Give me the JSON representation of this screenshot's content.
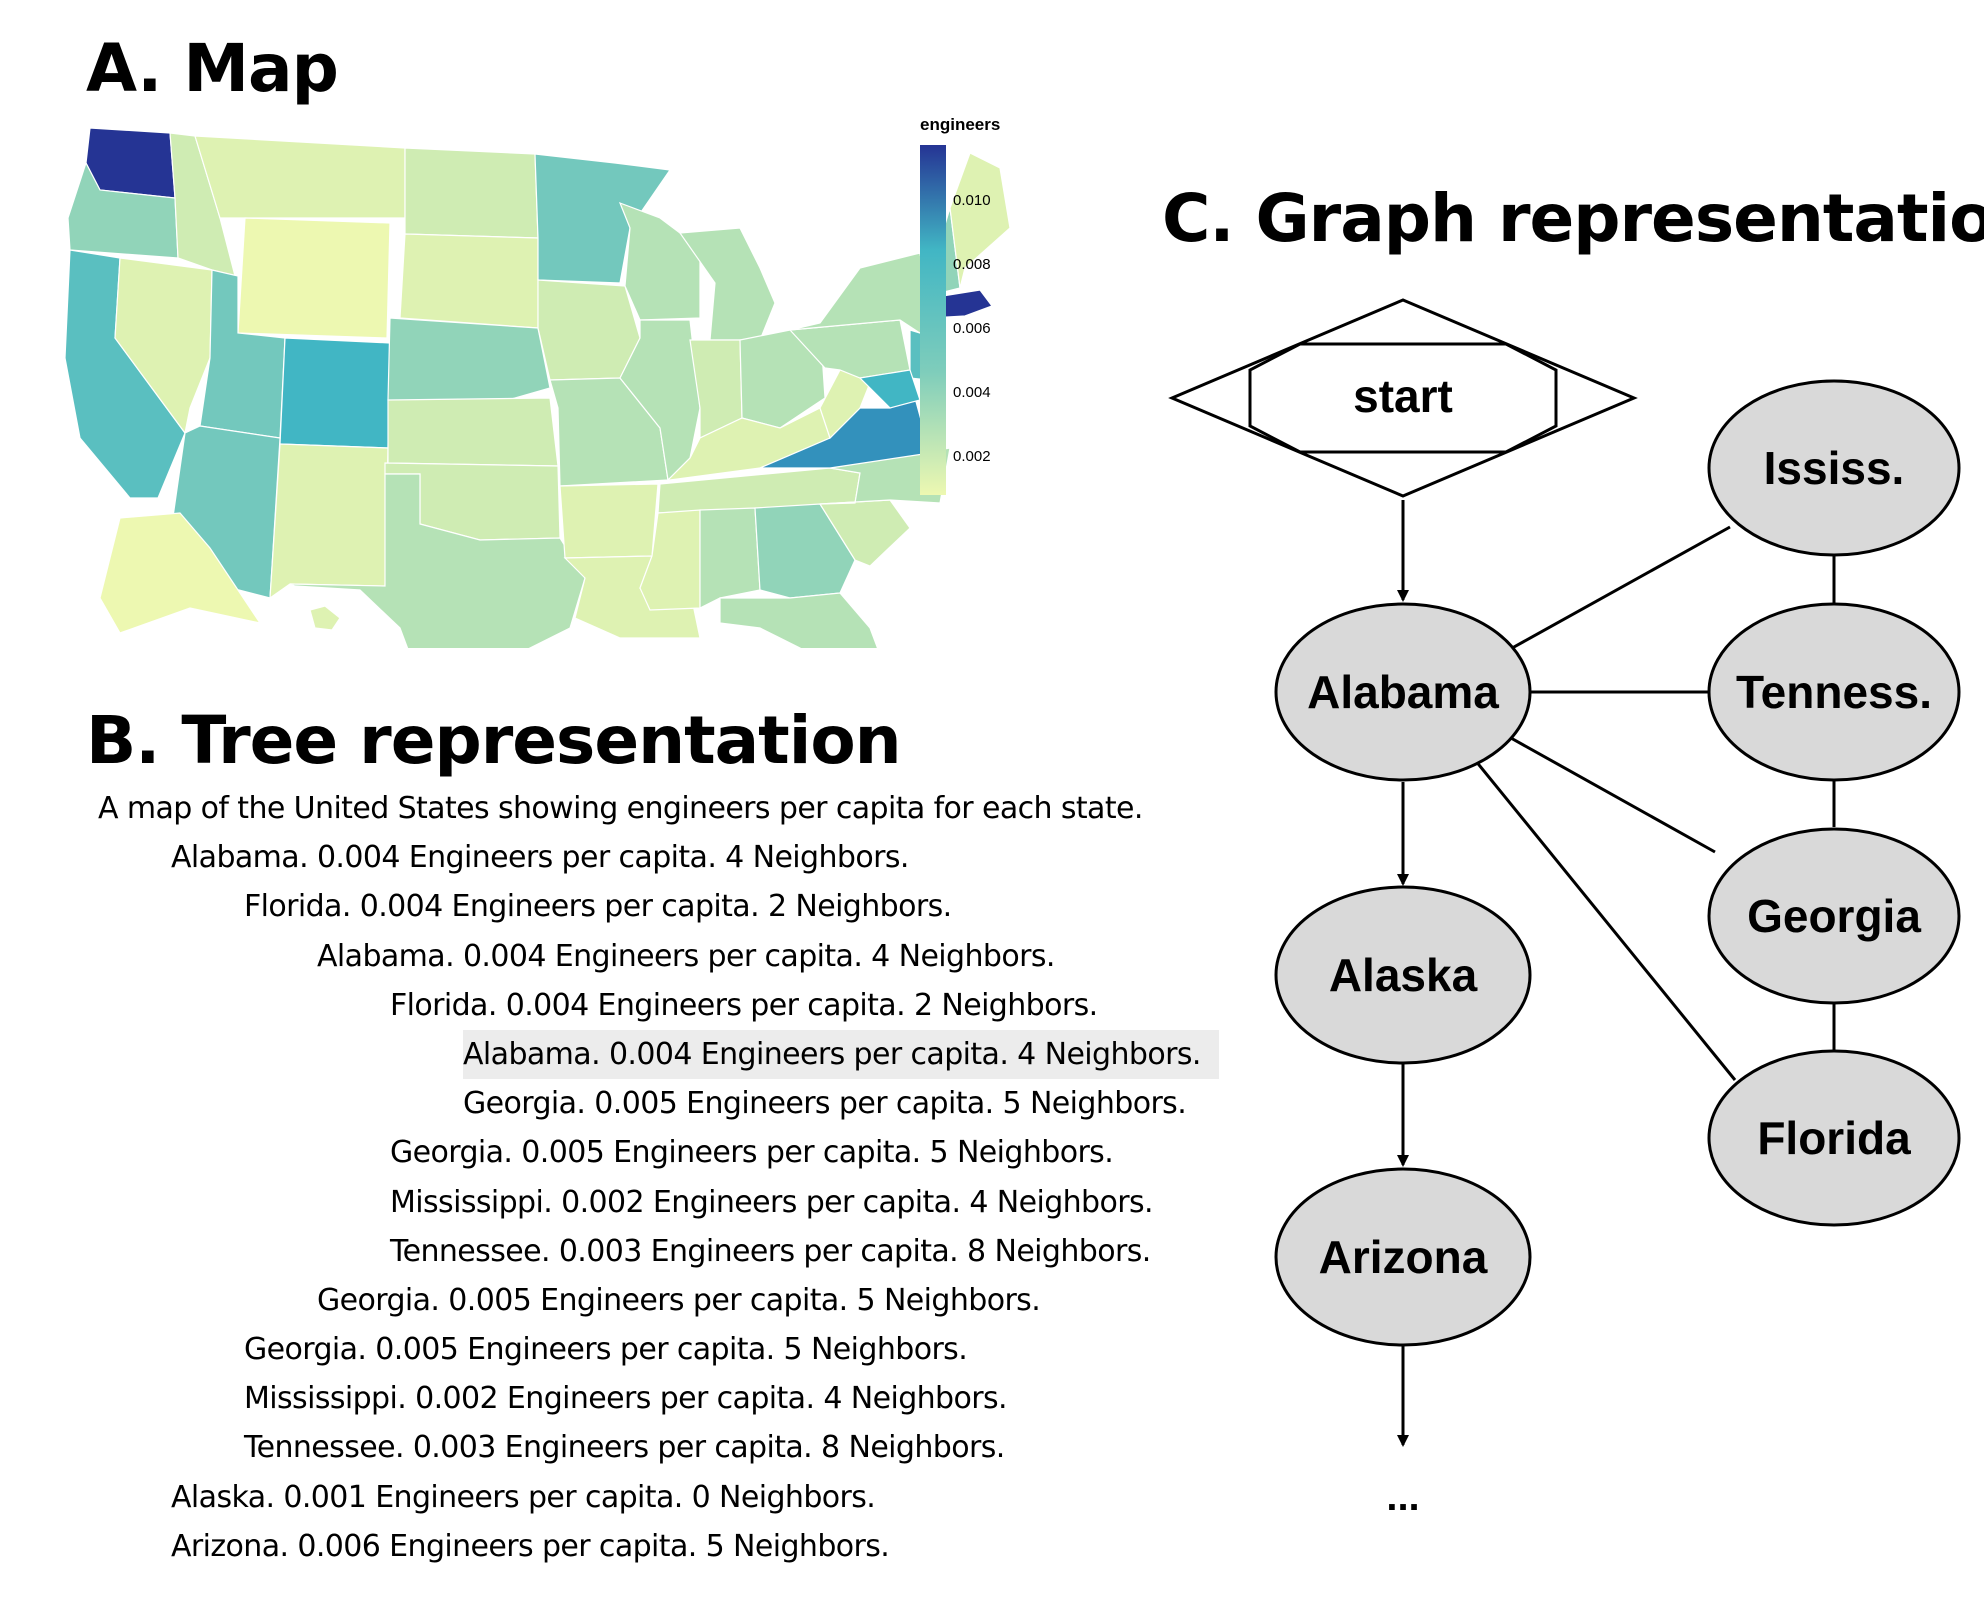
{
  "sections": {
    "map_title": "A. Map",
    "tree_title": "B. Tree representation",
    "graph_title": "C. Graph representation"
  },
  "map": {
    "legend_title": "engineers",
    "legend_ticks": [
      "0.010",
      "0.008",
      "0.006",
      "0.004",
      "0.002"
    ],
    "color_low": "#edf8b1",
    "color_high": "#253494",
    "state_values": {
      "Washington": 0.011,
      "Oregon": 0.005,
      "California": 0.007,
      "Nevada": 0.002,
      "Idaho": 0.003,
      "Montana": 0.002,
      "Wyoming": 0.001,
      "Utah": 0.006,
      "Arizona": 0.006,
      "Colorado": 0.008,
      "New Mexico": 0.002,
      "North Dakota": 0.003,
      "South Dakota": 0.002,
      "Nebraska": 0.005,
      "Kansas": 0.003,
      "Oklahoma": 0.003,
      "Texas": 0.004,
      "Minnesota": 0.006,
      "Iowa": 0.003,
      "Missouri": 0.004,
      "Arkansas": 0.002,
      "Louisiana": 0.002,
      "Wisconsin": 0.004,
      "Illinois": 0.004,
      "Michigan": 0.004,
      "Indiana": 0.003,
      "Ohio": 0.004,
      "Kentucky": 0.002,
      "Tennessee": 0.003,
      "Mississippi": 0.002,
      "Alabama": 0.004,
      "Georgia": 0.005,
      "Florida": 0.004,
      "South Carolina": 0.003,
      "North Carolina": 0.004,
      "Virginia": 0.009,
      "West Virginia": 0.002,
      "Pennsylvania": 0.004,
      "New York": 0.004,
      "Vermont": 0.004,
      "New Hampshire": 0.005,
      "Maine": 0.002,
      "Massachusetts": 0.011,
      "New Jersey": 0.007,
      "Maryland": 0.008,
      "Alaska": 0.001,
      "Hawaii": 0.002
    }
  },
  "tree": {
    "rows": [
      {
        "level": 0,
        "text": "A map of the United States showing engineers per capita for each state."
      },
      {
        "level": 1,
        "text": "Alabama. 0.004 Engineers per capita. 4 Neighbors."
      },
      {
        "level": 2,
        "text": "Florida. 0.004 Engineers per capita. 2 Neighbors."
      },
      {
        "level": 3,
        "text": "Alabama. 0.004 Engineers per capita. 4 Neighbors."
      },
      {
        "level": 4,
        "text": "Florida. 0.004 Engineers per capita. 2 Neighbors."
      },
      {
        "level": 5,
        "text": "Alabama. 0.004 Engineers per capita. 4 Neighbors.",
        "selected": true
      },
      {
        "level": 5,
        "text": "Georgia. 0.005 Engineers per capita. 5 Neighbors."
      },
      {
        "level": 4,
        "text": "Georgia. 0.005 Engineers per capita. 5 Neighbors."
      },
      {
        "level": 4,
        "text": "Mississippi. 0.002 Engineers per capita. 4 Neighbors."
      },
      {
        "level": 4,
        "text": "Tennessee. 0.003 Engineers per capita. 8 Neighbors."
      },
      {
        "level": 3,
        "text": "Georgia. 0.005 Engineers per capita. 5 Neighbors."
      },
      {
        "level": 2,
        "text": "Georgia. 0.005 Engineers per capita. 5 Neighbors."
      },
      {
        "level": 2,
        "text": "Mississippi. 0.002 Engineers per capita. 4 Neighbors."
      },
      {
        "level": 2,
        "text": "Tennessee. 0.003 Engineers per capita. 8 Neighbors."
      },
      {
        "level": 1,
        "text": "Alaska. 0.001 Engineers per capita. 0 Neighbors."
      },
      {
        "level": 1,
        "text": "Arizona. 0.006 Engineers per capita. 5 Neighbors."
      }
    ]
  },
  "graph": {
    "start_label": "start",
    "nodes": {
      "alabama": "Alabama",
      "alaska": "Alaska",
      "arizona": "Arizona",
      "mississippi": "Ississ.",
      "tennessee": "Tenness.",
      "georgia": "Georgia",
      "florida": "Florida"
    },
    "more_label": "..."
  }
}
